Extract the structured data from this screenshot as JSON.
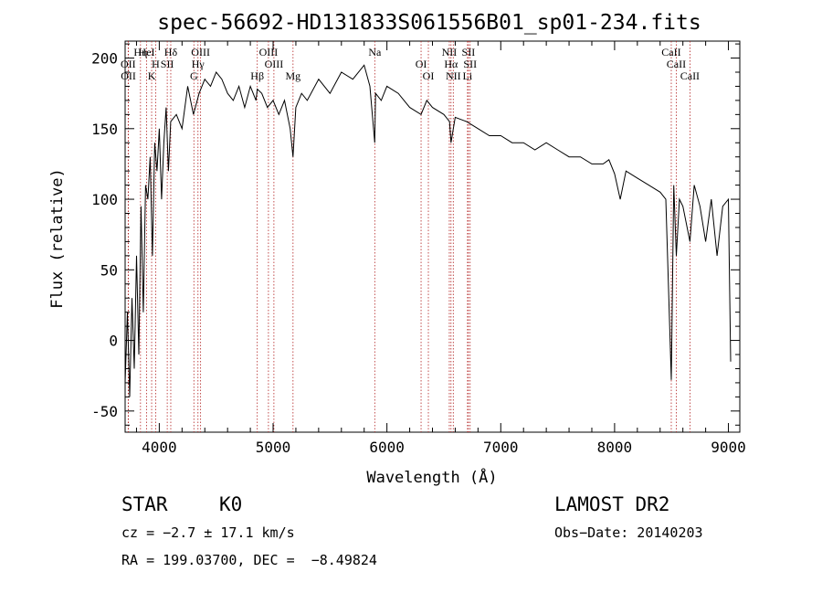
{
  "chart_data": {
    "type": "line",
    "title": "spec-56692-HD131833S061556B01_sp01-234.fits",
    "xlabel": "Wavelength (Å)",
    "ylabel": "Flux (relative)",
    "xlim": [
      3700,
      9100
    ],
    "ylim": [
      -65,
      212
    ],
    "xticks": [
      4000,
      5000,
      6000,
      7000,
      8000,
      9000
    ],
    "yticks": [
      -50,
      0,
      50,
      100,
      150,
      200
    ],
    "series": [
      {
        "color": "#000000",
        "x": [
          3700,
          3720,
          3740,
          3760,
          3780,
          3800,
          3820,
          3840,
          3860,
          3880,
          3900,
          3920,
          3940,
          3960,
          3980,
          4000,
          4020,
          4040,
          4060,
          4080,
          4100,
          4150,
          4200,
          4250,
          4300,
          4350,
          4400,
          4450,
          4500,
          4550,
          4600,
          4650,
          4700,
          4750,
          4800,
          4850,
          4861,
          4900,
          4950,
          5000,
          5050,
          5100,
          5150,
          5175,
          5200,
          5250,
          5300,
          5400,
          5500,
          5600,
          5700,
          5800,
          5850,
          5893,
          5900,
          5950,
          6000,
          6100,
          6200,
          6300,
          6350,
          6400,
          6500,
          6550,
          6563,
          6600,
          6700,
          6800,
          6900,
          7000,
          7100,
          7200,
          7300,
          7400,
          7500,
          7600,
          7700,
          7800,
          7900,
          7950,
          8000,
          8050,
          8100,
          8200,
          8300,
          8400,
          8450,
          8498,
          8520,
          8542,
          8570,
          8600,
          8662,
          8700,
          8750,
          8800,
          8850,
          8900,
          8950,
          9000,
          9020
        ],
        "y": [
          -30,
          20,
          -40,
          30,
          -20,
          60,
          -10,
          95,
          20,
          110,
          100,
          130,
          60,
          140,
          120,
          150,
          100,
          140,
          165,
          120,
          155,
          160,
          150,
          180,
          160,
          175,
          185,
          180,
          190,
          185,
          175,
          170,
          180,
          165,
          180,
          170,
          178,
          175,
          165,
          170,
          160,
          170,
          150,
          130,
          165,
          175,
          170,
          185,
          175,
          190,
          185,
          195,
          180,
          140,
          175,
          170,
          180,
          175,
          165,
          160,
          170,
          165,
          160,
          155,
          140,
          158,
          155,
          150,
          145,
          145,
          140,
          140,
          135,
          140,
          135,
          130,
          130,
          125,
          125,
          128,
          118,
          100,
          120,
          115,
          110,
          105,
          100,
          -28,
          110,
          60,
          100,
          95,
          70,
          110,
          95,
          70,
          100,
          60,
          95,
          100,
          -15
        ]
      }
    ],
    "spectral_lines": [
      {
        "label": "Hη",
        "x": 3835
      },
      {
        "label": "H",
        "x": 3968
      },
      {
        "label": "K",
        "x": 3933
      },
      {
        "label": "Hδ",
        "x": 4101
      },
      {
        "label": "OII",
        "x": 3727
      },
      {
        "label": "OII",
        "x": 3729
      },
      {
        "label": "HeI",
        "x": 3889
      },
      {
        "label": "SII",
        "x": 4070
      },
      {
        "label": "G",
        "x": 4304
      },
      {
        "label": "OIII",
        "x": 4363
      },
      {
        "label": "Hγ",
        "x": 4340
      },
      {
        "label": "Hβ",
        "x": 4861
      },
      {
        "label": "OIII",
        "x": 4959
      },
      {
        "label": "OIII",
        "x": 5007
      },
      {
        "label": "Mg",
        "x": 5175
      },
      {
        "label": "Na",
        "x": 5893
      },
      {
        "label": "OI",
        "x": 6300
      },
      {
        "label": "OI",
        "x": 6364
      },
      {
        "label": "NII",
        "x": 6548
      },
      {
        "label": "Hα",
        "x": 6563
      },
      {
        "label": "NII",
        "x": 6583
      },
      {
        "label": "SII",
        "x": 6716
      },
      {
        "label": "SII",
        "x": 6731
      },
      {
        "label": "Li",
        "x": 6708
      },
      {
        "label": "CaII",
        "x": 8498
      },
      {
        "label": "CaII",
        "x": 8542
      },
      {
        "label": "CaII",
        "x": 8662
      }
    ]
  },
  "info": {
    "class_label": "STAR",
    "subclass": "K0",
    "survey": "LAMOST DR2",
    "cz": "cz = −2.7 ± 17.1 km/s",
    "obs_date": "Obs−Date: 20140203",
    "coords": "RA = 199.03700, DEC =  −8.49824"
  }
}
